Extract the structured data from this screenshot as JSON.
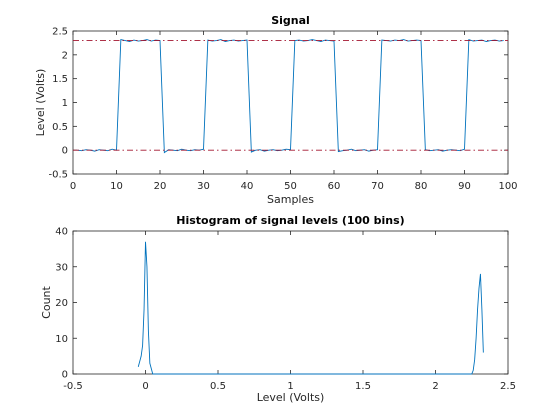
{
  "chart_data": [
    {
      "type": "line",
      "title": "Signal",
      "xlabel": "Samples",
      "ylabel": "Level (Volts)",
      "xlim": [
        0,
        100
      ],
      "ylim": [
        -0.5,
        2.5
      ],
      "xticks": [
        0,
        10,
        20,
        30,
        40,
        50,
        60,
        70,
        80,
        90,
        100
      ],
      "yticks": [
        -0.5,
        0,
        0.5,
        1,
        1.5,
        2,
        2.5
      ],
      "xtick_labels": [
        "0",
        "10",
        "20",
        "30",
        "40",
        "50",
        "60",
        "70",
        "80",
        "90",
        "100"
      ],
      "ytick_labels": [
        "-0.5",
        "0",
        "0.5",
        "1",
        "1.5",
        "2",
        "2.5"
      ],
      "series": [
        {
          "color": "#0072bd",
          "x": [
            1,
            2,
            3,
            4,
            5,
            6,
            7,
            8,
            9,
            10,
            11,
            12,
            13,
            14,
            15,
            16,
            17,
            18,
            19,
            20,
            21,
            22,
            23,
            24,
            25,
            26,
            27,
            28,
            29,
            30,
            31,
            32,
            33,
            34,
            35,
            36,
            37,
            38,
            39,
            40,
            41,
            42,
            43,
            44,
            45,
            46,
            47,
            48,
            49,
            50,
            51,
            52,
            53,
            54,
            55,
            56,
            57,
            58,
            59,
            60,
            61,
            62,
            63,
            64,
            65,
            66,
            67,
            68,
            69,
            70,
            71,
            72,
            73,
            74,
            75,
            76,
            77,
            78,
            79,
            80,
            81,
            82,
            83,
            84,
            85,
            86,
            87,
            88,
            89,
            90,
            91,
            92,
            93,
            94,
            95,
            96,
            97,
            98,
            99
          ],
          "values": [
            0.0,
            -0.01,
            0.01,
            0.0,
            -0.02,
            0.01,
            0.0,
            -0.01,
            0.02,
            0.0,
            2.32,
            2.3,
            2.28,
            2.31,
            2.29,
            2.3,
            2.32,
            2.29,
            2.31,
            2.3,
            -0.05,
            0.01,
            0.0,
            -0.01,
            0.02,
            0.0,
            -0.01,
            0.01,
            0.0,
            0.02,
            2.31,
            2.29,
            2.3,
            2.32,
            2.28,
            2.3,
            2.31,
            2.29,
            2.3,
            2.31,
            -0.04,
            0.0,
            0.01,
            -0.02,
            0.0,
            0.01,
            -0.01,
            0.0,
            0.02,
            0.01,
            2.3,
            2.31,
            2.29,
            2.3,
            2.32,
            2.3,
            2.28,
            2.31,
            2.3,
            2.29,
            -0.03,
            -0.01,
            0.0,
            0.02,
            -0.01,
            0.0,
            0.01,
            -0.02,
            0.0,
            0.01,
            2.31,
            2.3,
            2.29,
            2.31,
            2.3,
            2.32,
            2.29,
            2.3,
            2.31,
            2.3,
            0.01,
            -0.01,
            0.0,
            0.01,
            -0.02,
            0.0,
            0.01,
            0.0,
            -0.01,
            0.02,
            2.32,
            2.29,
            2.3,
            2.31,
            2.28,
            2.3,
            2.31,
            2.29,
            2.3
          ]
        },
        {
          "color": "#a2142f",
          "style": "dash-dot",
          "x": [
            0,
            100
          ],
          "values": [
            2.3,
            2.3
          ]
        },
        {
          "color": "#a2142f",
          "style": "dash-dot",
          "x": [
            0,
            100
          ],
          "values": [
            0,
            0
          ]
        }
      ]
    },
    {
      "type": "line",
      "title": "Histogram of signal levels (100 bins)",
      "xlabel": "Level (Volts)",
      "ylabel": "Count",
      "xlim": [
        -0.5,
        2.5
      ],
      "ylim": [
        0,
        40
      ],
      "xticks": [
        -0.5,
        0,
        0.5,
        1,
        1.5,
        2,
        2.5
      ],
      "yticks": [
        0,
        10,
        20,
        30,
        40
      ],
      "xtick_labels": [
        "-0.5",
        "0",
        "0.5",
        "1",
        "1.5",
        "2",
        "2.5"
      ],
      "ytick_labels": [
        "0",
        "10",
        "20",
        "30",
        "40"
      ],
      "series": [
        {
          "color": "#0072bd",
          "x": [
            -0.05,
            -0.03,
            -0.02,
            -0.01,
            0.0,
            0.01,
            0.02,
            0.03,
            0.05,
            0.08,
            2.2,
            2.25,
            2.26,
            2.27,
            2.28,
            2.29,
            2.3,
            2.31,
            2.32,
            2.33
          ],
          "values": [
            2,
            5,
            8,
            18,
            37,
            30,
            12,
            3,
            0,
            0,
            0,
            0,
            1,
            4,
            10,
            18,
            24,
            28,
            18,
            6
          ]
        }
      ]
    }
  ]
}
